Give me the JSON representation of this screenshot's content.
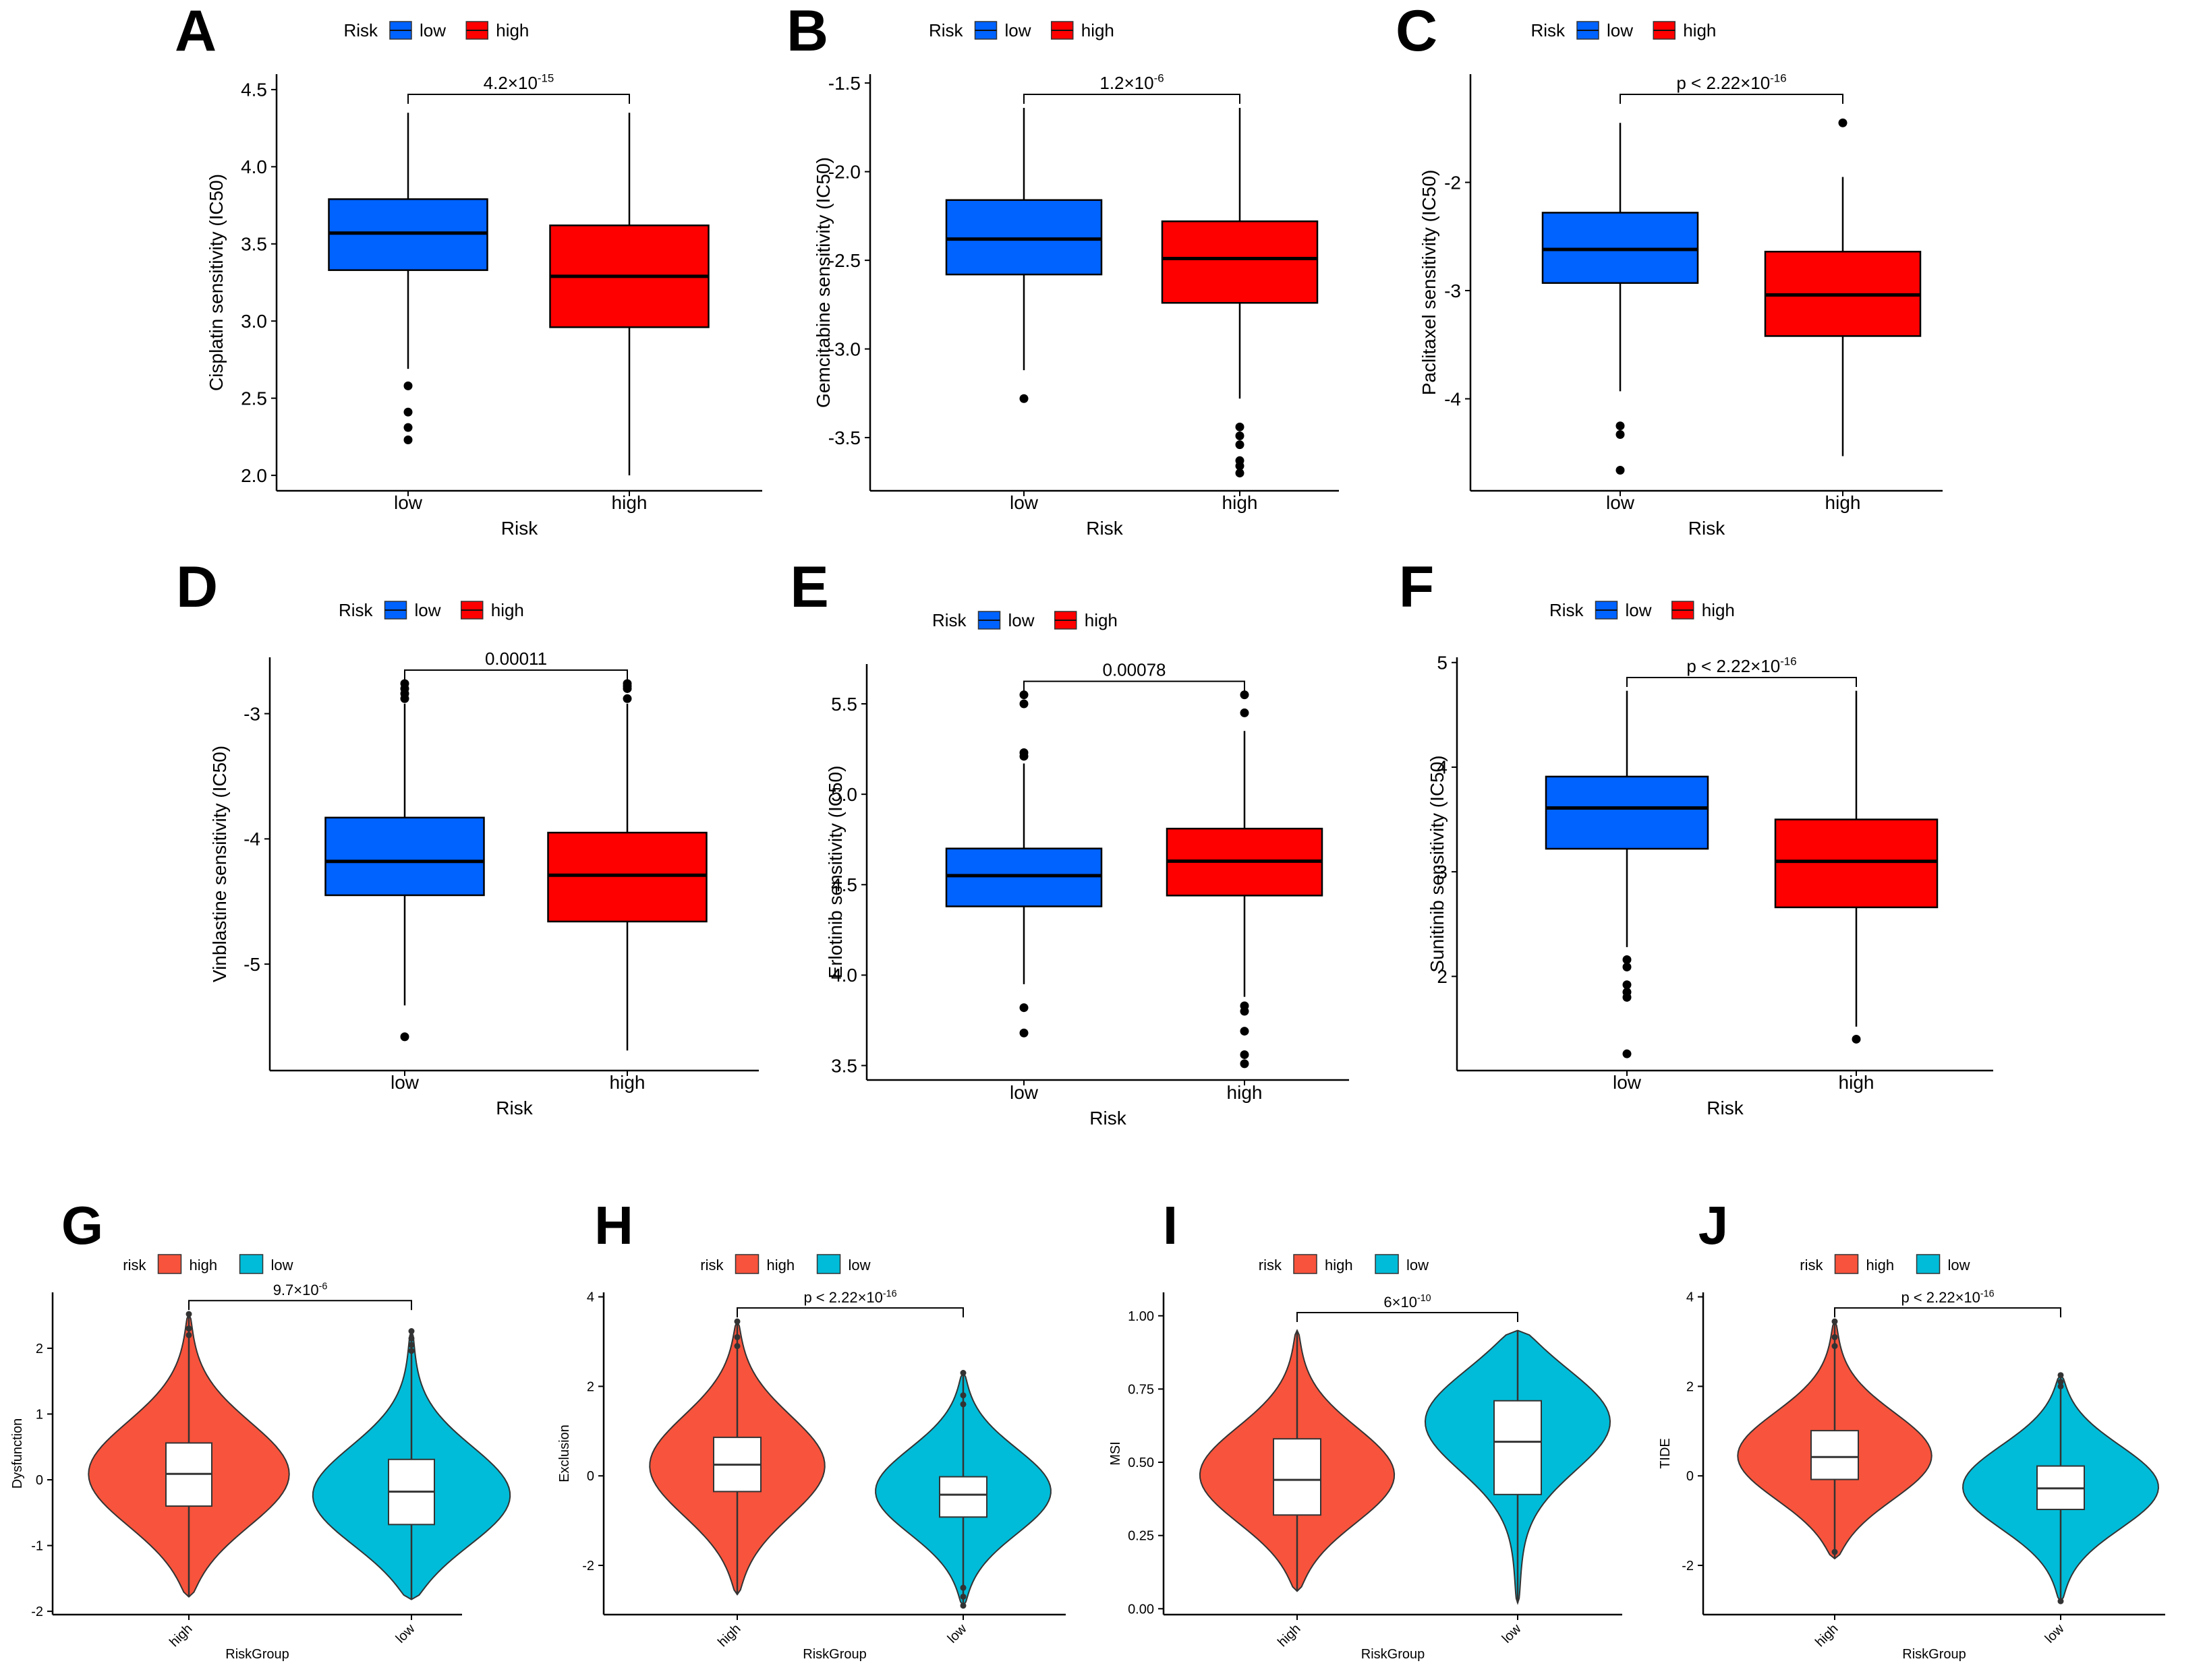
{
  "figure_labels": [
    "A",
    "B",
    "C",
    "D",
    "E",
    "F",
    "G",
    "H",
    "I",
    "J"
  ],
  "colors": {
    "box_low": "#0062FF",
    "box_high": "#FF0000",
    "violin_high": "#F8533C",
    "violin_low": "#00BCD8"
  },
  "chart_data": [
    {
      "id": "A",
      "type": "box",
      "title": "",
      "legend_title": "Risk",
      "legend": [
        "low",
        "high"
      ],
      "xlabel": "Risk",
      "ylabel": "Cisplatin sensitivity (IC50)",
      "categories": [
        "low",
        "high"
      ],
      "ylim": [
        1.9,
        4.6
      ],
      "yticks": [
        2.0,
        2.5,
        3.0,
        3.5,
        4.0,
        4.5
      ],
      "ytick_labels": [
        "2.0",
        "2.5",
        "3.0",
        "3.5",
        "4.0",
        "4.5"
      ],
      "pvalue_base": "4.2×10",
      "pvalue_exp": "-15",
      "boxes": [
        {
          "group": "low",
          "q1": 3.33,
          "median": 3.57,
          "q3": 3.79,
          "whisker_low": 2.69,
          "whisker_high": 4.35,
          "outliers": [
            2.58,
            2.41,
            2.31,
            2.23
          ]
        },
        {
          "group": "high",
          "q1": 2.96,
          "median": 3.29,
          "q3": 3.62,
          "whisker_low": 2.0,
          "whisker_high": 4.35,
          "outliers": []
        }
      ]
    },
    {
      "id": "B",
      "type": "box",
      "title": "",
      "legend_title": "Risk",
      "legend": [
        "low",
        "high"
      ],
      "xlabel": "Risk",
      "ylabel": "Gemcitabine sensitivity (IC50)",
      "categories": [
        "low",
        "high"
      ],
      "ylim": [
        -3.8,
        -1.45
      ],
      "yticks": [
        -3.5,
        -3.0,
        -2.5,
        -2.0,
        -1.5
      ],
      "ytick_labels": [
        "-3.5",
        "-3.0",
        "-2.5",
        "-2.0",
        "-1.5"
      ],
      "pvalue_base": "1.2×10",
      "pvalue_exp": "-6",
      "boxes": [
        {
          "group": "low",
          "q1": -2.58,
          "median": -2.38,
          "q3": -2.16,
          "whisker_low": -3.12,
          "whisker_high": -1.64,
          "outliers": [
            -3.28
          ]
        },
        {
          "group": "high",
          "q1": -2.74,
          "median": -2.49,
          "q3": -2.28,
          "whisker_low": -3.28,
          "whisker_high": -1.64,
          "outliers": [
            -3.44,
            -3.49,
            -3.54,
            -3.63,
            -3.66,
            -3.7
          ]
        }
      ]
    },
    {
      "id": "C",
      "type": "box",
      "title": "",
      "legend_title": "Risk",
      "legend": [
        "low",
        "high"
      ],
      "xlabel": "Risk",
      "ylabel": "Paclitaxel sensitivity (IC50)",
      "categories": [
        "low",
        "high"
      ],
      "ylim": [
        -4.85,
        -1.0
      ],
      "yticks": [
        -4,
        -3,
        -2
      ],
      "ytick_labels": [
        "-4",
        "-3",
        "-2"
      ],
      "pvalue_base": "p < 2.22×10",
      "pvalue_exp": "-16",
      "boxes": [
        {
          "group": "low",
          "q1": -2.93,
          "median": -2.62,
          "q3": -2.28,
          "whisker_low": -3.93,
          "whisker_high": -1.45,
          "outliers": [
            -4.25,
            -4.33,
            -4.66
          ]
        },
        {
          "group": "high",
          "q1": -3.42,
          "median": -3.04,
          "q3": -2.64,
          "whisker_low": -4.53,
          "whisker_high": -1.95,
          "outliers": [
            -1.45
          ]
        }
      ]
    },
    {
      "id": "D",
      "type": "box",
      "title": "",
      "legend_title": "Risk",
      "legend": [
        "low",
        "high"
      ],
      "xlabel": "Risk",
      "ylabel": "Vinblastine sensitivity (IC50)",
      "categories": [
        "low",
        "high"
      ],
      "ylim": [
        -5.85,
        -2.55
      ],
      "yticks": [
        -5,
        -4,
        -3
      ],
      "ytick_labels": [
        "-5",
        "-4",
        "-3"
      ],
      "pvalue_base": "0.00011",
      "pvalue_exp": "",
      "boxes": [
        {
          "group": "low",
          "q1": -4.45,
          "median": -4.18,
          "q3": -3.83,
          "whisker_low": -5.33,
          "whisker_high": -2.92,
          "outliers": [
            -2.76,
            -2.8,
            -2.84,
            -2.88,
            -5.58
          ]
        },
        {
          "group": "high",
          "q1": -4.66,
          "median": -4.29,
          "q3": -3.95,
          "whisker_low": -5.69,
          "whisker_high": -2.92,
          "outliers": [
            -2.76,
            -2.78,
            -2.8,
            -2.88
          ]
        }
      ]
    },
    {
      "id": "E",
      "type": "box",
      "title": "",
      "legend_title": "Risk",
      "legend": [
        "low",
        "high"
      ],
      "xlabel": "Risk",
      "ylabel": "Erlotinib sensitivity (IC50)",
      "categories": [
        "low",
        "high"
      ],
      "ylim": [
        3.42,
        5.72
      ],
      "yticks": [
        3.5,
        4.0,
        4.5,
        5.0,
        5.5
      ],
      "ytick_labels": [
        "3.5",
        "4.0",
        "4.5",
        "5.0",
        "5.5"
      ],
      "pvalue_base": "0.00078",
      "pvalue_exp": "",
      "boxes": [
        {
          "group": "low",
          "q1": 4.38,
          "median": 4.55,
          "q3": 4.7,
          "whisker_low": 3.95,
          "whisker_high": 5.17,
          "outliers": [
            5.55,
            5.5,
            5.23,
            5.21,
            3.82,
            3.68
          ]
        },
        {
          "group": "high",
          "q1": 4.44,
          "median": 4.63,
          "q3": 4.81,
          "whisker_low": 3.88,
          "whisker_high": 5.35,
          "outliers": [
            5.55,
            5.45,
            3.83,
            3.8,
            3.69,
            3.56,
            3.51
          ]
        }
      ]
    },
    {
      "id": "F",
      "type": "box",
      "title": "",
      "legend_title": "Risk",
      "legend": [
        "low",
        "high"
      ],
      "xlabel": "Risk",
      "ylabel": "Sunitinib sensitivity (IC50)",
      "categories": [
        "low",
        "high"
      ],
      "ylim": [
        1.1,
        5.05
      ],
      "yticks": [
        2,
        3,
        4,
        5
      ],
      "ytick_labels": [
        "2",
        "3",
        "4",
        "5"
      ],
      "pvalue_base": "p < 2.22×10",
      "pvalue_exp": "-16",
      "boxes": [
        {
          "group": "low",
          "q1": 3.22,
          "median": 3.61,
          "q3": 3.91,
          "whisker_low": 2.28,
          "whisker_high": 4.73,
          "outliers": [
            2.16,
            2.09,
            1.92,
            1.85,
            1.8,
            1.26
          ]
        },
        {
          "group": "high",
          "q1": 2.66,
          "median": 3.1,
          "q3": 3.5,
          "whisker_low": 1.52,
          "whisker_high": 4.73,
          "outliers": [
            1.4
          ]
        }
      ]
    },
    {
      "id": "G",
      "type": "violin",
      "title": "",
      "legend_title": "risk",
      "legend": [
        "high",
        "low"
      ],
      "xlabel": "RiskGroup",
      "ylabel": "Dysfunction",
      "categories": [
        "high",
        "low"
      ],
      "ylim": [
        -2.05,
        2.85
      ],
      "yticks": [
        -2,
        -1,
        0,
        1,
        2
      ],
      "ytick_labels": [
        "-2",
        "-1",
        "0",
        "1",
        "2"
      ],
      "pvalue_base": "9.7×10",
      "pvalue_exp": "-6",
      "groups": [
        {
          "group": "high",
          "min": -1.78,
          "max": 2.52,
          "mode": 0.05,
          "q1": -0.4,
          "median": 0.09,
          "q3": 0.56,
          "outliers": [
            2.52,
            2.3,
            2.2
          ]
        },
        {
          "group": "low",
          "min": -1.82,
          "max": 2.26,
          "mode": -0.3,
          "q1": -0.68,
          "median": -0.18,
          "q3": 0.31,
          "outliers": [
            2.26,
            2.15,
            2.05,
            1.96
          ]
        }
      ]
    },
    {
      "id": "H",
      "type": "violin",
      "title": "",
      "legend_title": "risk",
      "legend": [
        "high",
        "low"
      ],
      "xlabel": "RiskGroup",
      "ylabel": "Exclusion",
      "categories": [
        "high",
        "low"
      ],
      "ylim": [
        -3.1,
        4.1
      ],
      "yticks": [
        -2,
        0,
        2,
        4
      ],
      "ytick_labels": [
        "-2",
        "0",
        "2",
        "4"
      ],
      "pvalue_base": "p < 2.22×10",
      "pvalue_exp": "-16",
      "groups": [
        {
          "group": "high",
          "min": -2.65,
          "max": 3.45,
          "mode": 0.2,
          "q1": -0.35,
          "median": 0.25,
          "q3": 0.86,
          "outliers": [
            3.45,
            3.1,
            2.9
          ]
        },
        {
          "group": "low",
          "min": -2.9,
          "max": 2.3,
          "mode": -0.35,
          "q1": -0.92,
          "median": -0.42,
          "q3": -0.02,
          "outliers": [
            2.3,
            1.8,
            1.6,
            -2.5,
            -2.7,
            -2.9
          ]
        }
      ]
    },
    {
      "id": "I",
      "type": "violin",
      "title": "",
      "legend_title": "risk",
      "legend": [
        "high",
        "low"
      ],
      "xlabel": "RiskGroup",
      "ylabel": "MSI",
      "categories": [
        "high",
        "low"
      ],
      "ylim": [
        -0.02,
        1.08
      ],
      "yticks": [
        0.0,
        0.25,
        0.5,
        0.75,
        1.0
      ],
      "ytick_labels": [
        "0.00",
        "0.25",
        "0.50",
        "0.75",
        "1.00"
      ],
      "pvalue_base": "6×10",
      "pvalue_exp": "-10",
      "groups": [
        {
          "group": "high",
          "min": 0.06,
          "max": 0.95,
          "mode": 0.45,
          "q1": 0.32,
          "median": 0.44,
          "q3": 0.58,
          "outliers": []
        },
        {
          "group": "low",
          "min": 0.02,
          "max": 0.95,
          "mode": 0.66,
          "q1": 0.39,
          "median": 0.57,
          "q3": 0.71,
          "outliers": []
        }
      ]
    },
    {
      "id": "J",
      "type": "violin",
      "title": "",
      "legend_title": "risk",
      "legend": [
        "high",
        "low"
      ],
      "xlabel": "RiskGroup",
      "ylabel": "TIDE",
      "categories": [
        "high",
        "low"
      ],
      "ylim": [
        -3.1,
        4.1
      ],
      "yticks": [
        -2,
        0,
        2,
        4
      ],
      "ytick_labels": [
        "-2",
        "0",
        "2",
        "4"
      ],
      "pvalue_base": "p < 2.22×10",
      "pvalue_exp": "-16",
      "groups": [
        {
          "group": "high",
          "min": -1.85,
          "max": 3.45,
          "mode": 0.4,
          "q1": -0.08,
          "median": 0.42,
          "q3": 1.01,
          "outliers": [
            3.45,
            3.1,
            2.9,
            -1.7
          ]
        },
        {
          "group": "low",
          "min": -2.8,
          "max": 2.25,
          "mode": -0.25,
          "q1": -0.75,
          "median": -0.28,
          "q3": 0.22,
          "outliers": [
            2.25,
            2.1,
            2.0,
            -2.8
          ]
        }
      ]
    }
  ]
}
